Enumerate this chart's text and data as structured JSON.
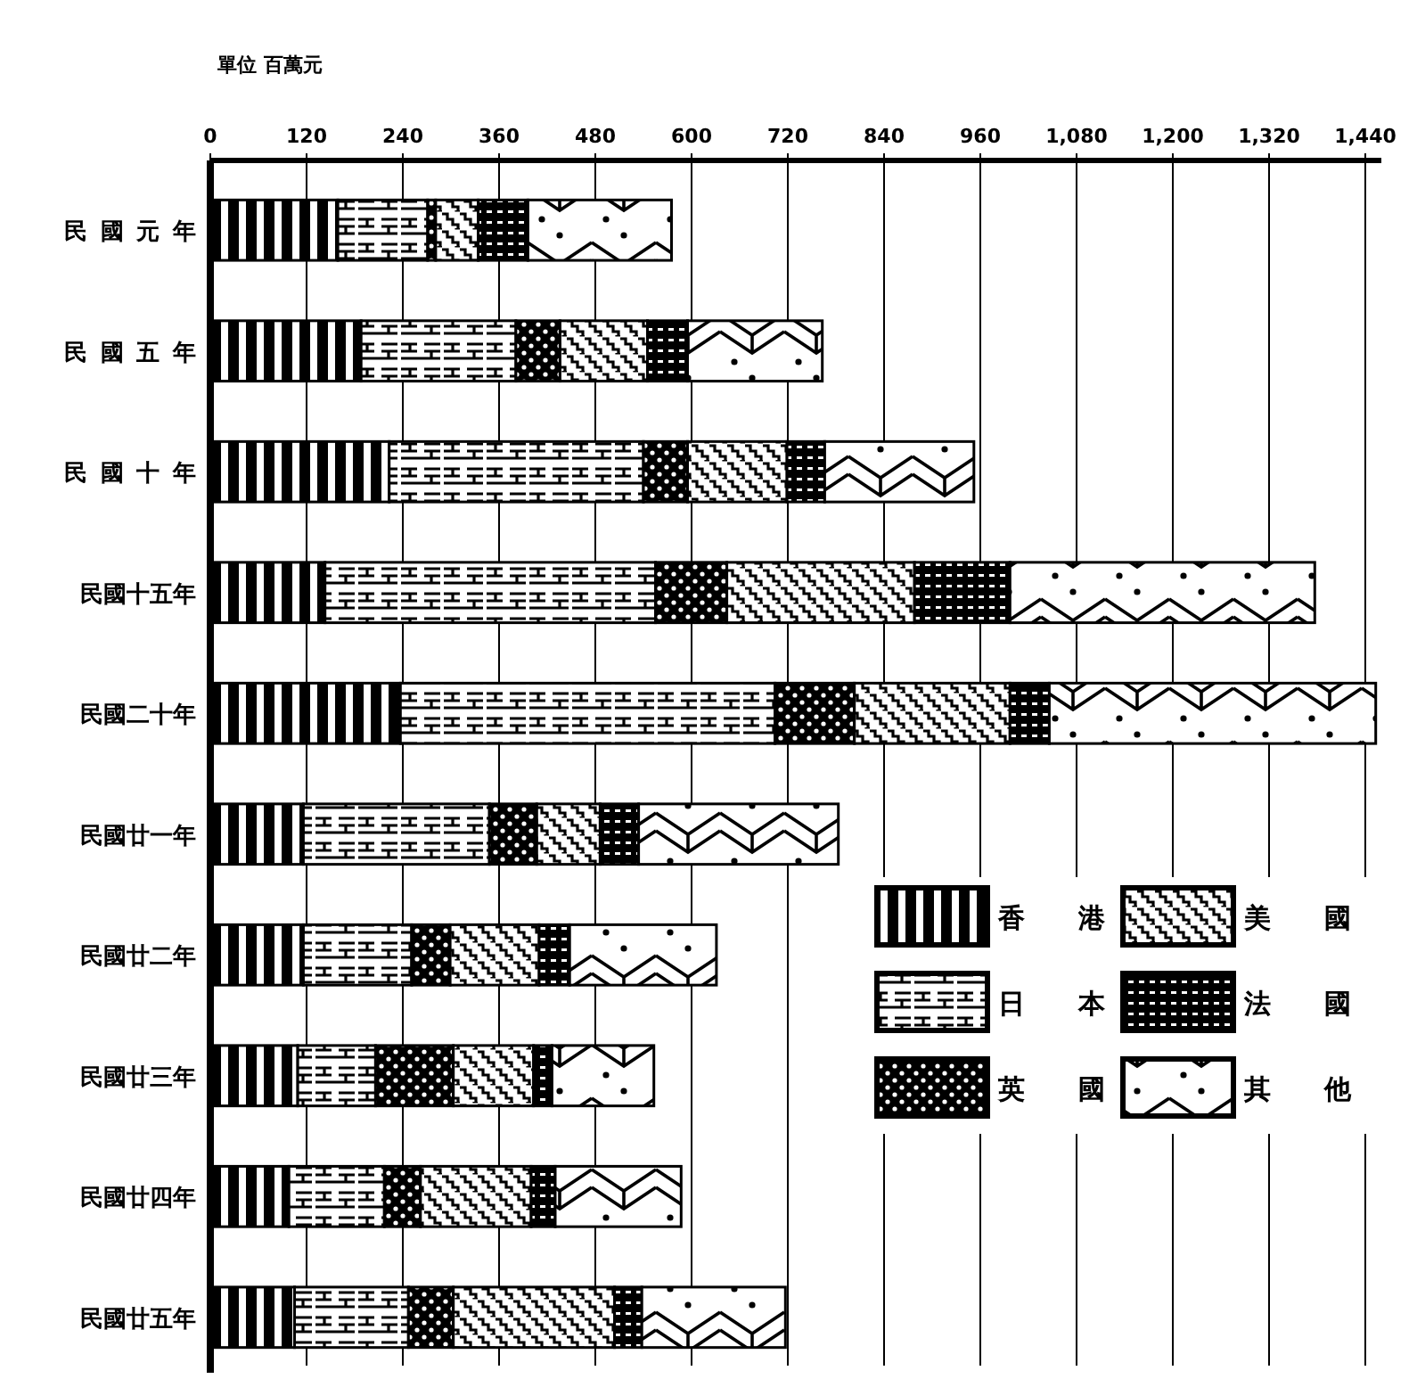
{
  "chart_data": {
    "type": "bar",
    "orientation": "horizontal",
    "stacked": true,
    "annotations": [
      "單位 百萬元"
    ],
    "categories": [
      "民國元年",
      "民國五年",
      "民國十年",
      "民國十五年",
      "民國二十年",
      "民國廿一年",
      "民國廿二年",
      "民國廿三年",
      "民國廿四年",
      "民國廿五年"
    ],
    "xlim": [
      0,
      1460
    ],
    "xticks": [
      0,
      120,
      240,
      360,
      480,
      600,
      720,
      840,
      960,
      {
        "value": 1080,
        "label": "1,080"
      },
      {
        "value": 1200,
        "label": "1,200"
      },
      {
        "value": 1320,
        "label": "1,320"
      },
      {
        "value": 1440,
        "label": "1,440"
      }
    ],
    "grid": "x",
    "legend": "bottom right",
    "series": [
      {
        "name": "香港",
        "color": "#000000",
        "values": [
          159,
          188,
          223,
          143,
          237,
          116,
          116,
          109,
          98,
          105
        ]
      },
      {
        "name": "日本",
        "color": "#000000",
        "values": [
          112,
          193,
          317,
          412,
          467,
          232,
          135,
          97,
          119,
          142
        ]
      },
      {
        "name": "英國",
        "color": "#000000",
        "values": [
          10,
          55,
          55,
          89,
          99,
          59,
          48,
          97,
          45,
          56
        ]
      },
      {
        "name": "美國",
        "color": "#000000",
        "values": [
          53,
          109,
          124,
          234,
          194,
          79,
          111,
          100,
          138,
          201
        ]
      },
      {
        "name": "法國",
        "color": "#000000",
        "values": [
          62,
          50,
          47,
          119,
          49,
          48,
          38,
          23,
          30,
          34
        ]
      },
      {
        "name": "其他",
        "color": "#000000",
        "values": [
          179,
          168,
          186,
          380,
          407,
          249,
          183,
          127,
          157,
          179
        ]
      }
    ]
  }
}
